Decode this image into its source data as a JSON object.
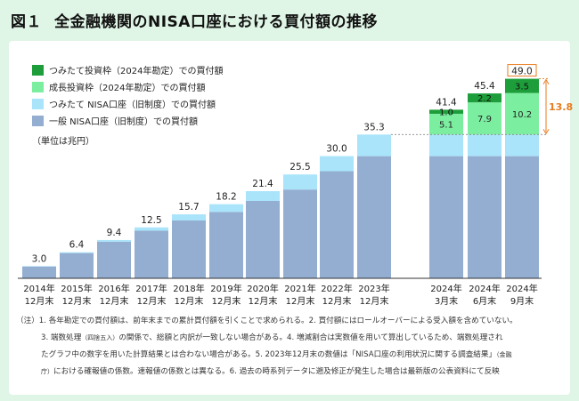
{
  "title": {
    "fig_label": "図１",
    "text": "全金融機関のNISA口座における買付額の推移"
  },
  "unit_label": "（単位は兆円）",
  "chart_data": {
    "type": "bar",
    "stacked": true,
    "categories": [
      {
        "year": "2014年",
        "period": "12月末"
      },
      {
        "year": "2015年",
        "period": "12月末"
      },
      {
        "year": "2016年",
        "period": "12月末"
      },
      {
        "year": "2017年",
        "period": "12月末"
      },
      {
        "year": "2018年",
        "period": "12月末"
      },
      {
        "year": "2019年",
        "period": "12月末"
      },
      {
        "year": "2020年",
        "period": "12月末"
      },
      {
        "year": "2021年",
        "period": "12月末"
      },
      {
        "year": "2022年",
        "period": "12月末"
      },
      {
        "year": "2023年",
        "period": "12月末"
      },
      {
        "year": "2024年",
        "period": "3月末"
      },
      {
        "year": "2024年",
        "period": "6月末"
      },
      {
        "year": "2024年",
        "period": "9月末"
      }
    ],
    "series": [
      {
        "name": "一般 NISA口座（旧制度）での買付額",
        "color": "#93aed1",
        "values": [
          2.9,
          6.2,
          9.0,
          11.7,
          14.2,
          16.3,
          19.0,
          21.8,
          26.3,
          30.0,
          30.0,
          30.0,
          30.0
        ]
      },
      {
        "name": "つみたて NISA口座（旧制度）での買付額",
        "color": "#a9e4fa",
        "values": [
          0.1,
          0.2,
          0.4,
          0.8,
          1.5,
          1.9,
          2.4,
          3.7,
          3.7,
          5.3,
          5.3,
          5.3,
          5.3
        ]
      },
      {
        "name": "成長投資枠（2024年勘定）での買付額",
        "color": "#7ceea0",
        "values": [
          0,
          0,
          0,
          0,
          0,
          0,
          0,
          0,
          0,
          0,
          5.1,
          7.9,
          10.2
        ]
      },
      {
        "name": "つみたて投資枠（2024年勘定）での買付額",
        "color": "#1e9e3a",
        "values": [
          0,
          0,
          0,
          0,
          0,
          0,
          0,
          0,
          0,
          0,
          1.0,
          2.2,
          3.5
        ]
      }
    ],
    "totals": [
      "3.0",
      "6.4",
      "9.4",
      "12.5",
      "15.7",
      "18.2",
      "21.4",
      "25.5",
      "30.0",
      "35.3",
      "41.4",
      "45.4",
      "49.0"
    ],
    "segment_labels": {
      "growth": [
        "5.1",
        "7.9",
        "10.2"
      ],
      "tsumitate": [
        "1.0",
        "2.2",
        "3.5"
      ]
    },
    "highlight_total": "49.0",
    "bracket_value": "13.8",
    "ylim": [
      0,
      50
    ],
    "legend_position": "top-left"
  },
  "notes": {
    "line1": "（注）1. 各年勘定での買付額は、前年末までの累計買付額を引くことで求められる。2. 買付額にはロールオーバーによる受入額を含めていない。",
    "line2a": "3. 端数処理",
    "line2b": "（四捨五入）",
    "line2c": "の関係で、総額と内訳が一致しない場合がある。4. 増減割合は実数値を用いて算出しているため、端数処理され",
    "line3a": "たグラフ中の数字を用いた計算結果とは合わない場合がある。5. 2023年12月末の数値は「NISA口座の利用状況に関する調査結果」",
    "line3b": "（金融",
    "line4a": "庁）",
    "line4b": "における確報値の係数。速報値の係数とは異なる。6. 過去の時系列データに遡及修正が発生した場合は最新版の公表資料にて反映"
  },
  "colors": {
    "background": "#dff5e6",
    "highlight_border": "#e87b1e",
    "bracket": "#e87b1e"
  }
}
